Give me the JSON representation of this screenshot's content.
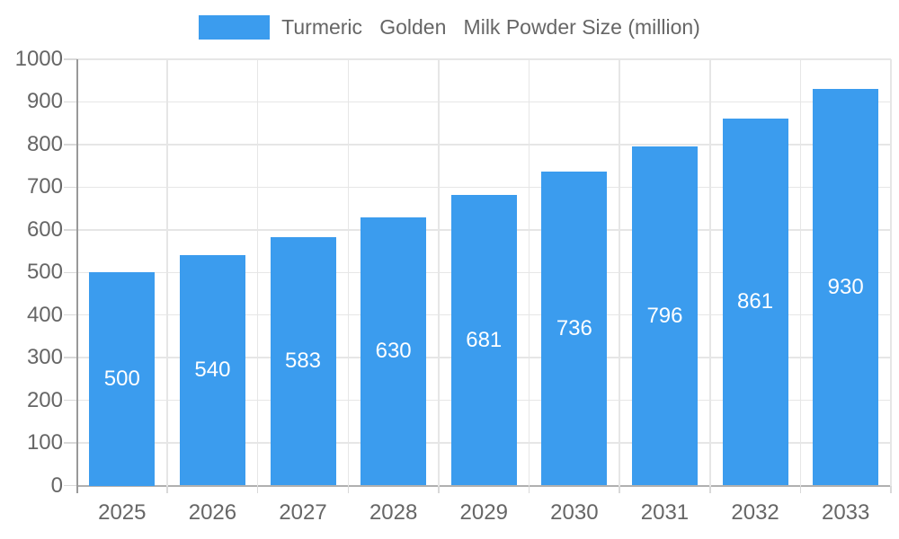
{
  "chart_data": {
    "type": "bar",
    "title": "",
    "legend_label": "Turmeric   Golden   Milk Powder Size (million)",
    "legend_position": "top",
    "categories": [
      "2025",
      "2026",
      "2027",
      "2028",
      "2029",
      "2030",
      "2031",
      "2032",
      "2033"
    ],
    "values": [
      500,
      540,
      583,
      630,
      681,
      736,
      796,
      861,
      930
    ],
    "data_labels_visible": true,
    "xlabel": "",
    "ylabel": "",
    "ylim": [
      0,
      1000
    ],
    "ytick_step": 100,
    "yticks": [
      0,
      100,
      200,
      300,
      400,
      500,
      600,
      700,
      800,
      900,
      1000
    ],
    "grid": true,
    "bar_color": "#3b9cee",
    "bar_label_color": "#ffffff",
    "axis_text_color": "#666666"
  }
}
